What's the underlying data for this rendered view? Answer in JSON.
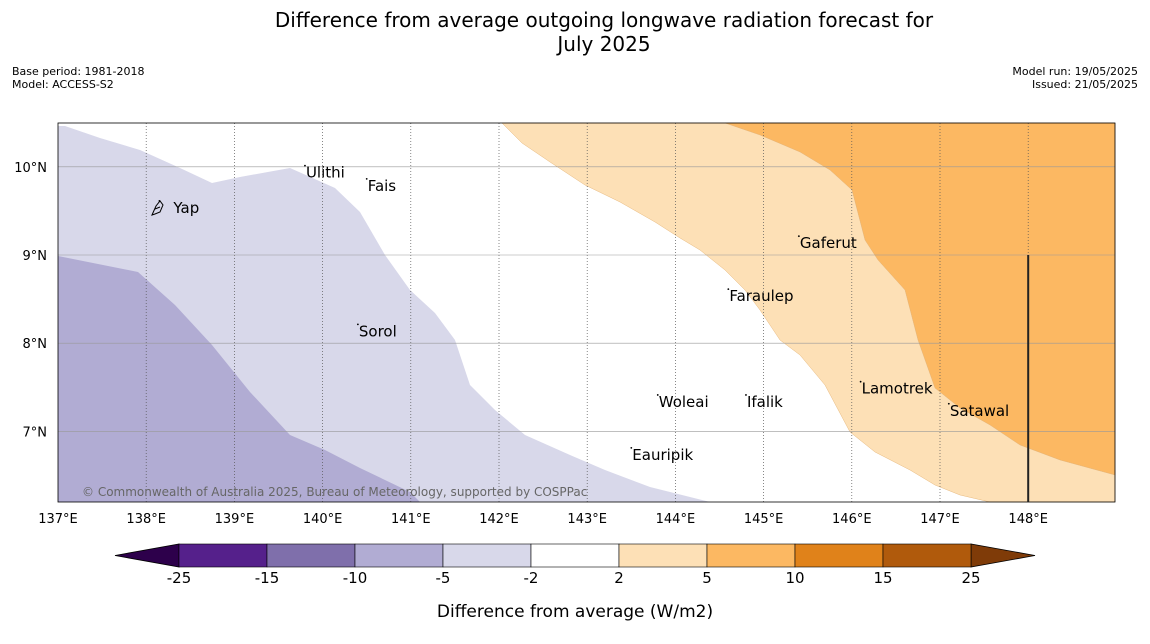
{
  "title": {
    "line1": "Difference from average outgoing longwave radiation forecast for",
    "line2": "July 2025"
  },
  "meta": {
    "base_period": "Base period: 1981-2018",
    "model": "Model: ACCESS-S2",
    "model_run": "Model run: 19/05/2025",
    "issued": "Issued: 21/05/2025"
  },
  "copyright": "© Commonwealth of Australia 2025, Bureau of Meteorology, supported by COSPPac",
  "map": {
    "lon_range": [
      137,
      149
    ],
    "lat_range": [
      6.2,
      10.5
    ],
    "lon_ticks": [
      {
        "value": 137,
        "label": "137°E"
      },
      {
        "value": 138,
        "label": "138°E"
      },
      {
        "value": 139,
        "label": "139°E"
      },
      {
        "value": 140,
        "label": "140°E"
      },
      {
        "value": 141,
        "label": "141°E"
      },
      {
        "value": 142,
        "label": "142°E"
      },
      {
        "value": 143,
        "label": "143°E"
      },
      {
        "value": 144,
        "label": "144°E"
      },
      {
        "value": 145,
        "label": "145°E"
      },
      {
        "value": 146,
        "label": "146°E"
      },
      {
        "value": 147,
        "label": "147°E"
      },
      {
        "value": 148,
        "label": "148°E"
      }
    ],
    "lat_ticks": [
      {
        "value": 10,
        "label": "10°N"
      },
      {
        "value": 9,
        "label": "9°N"
      },
      {
        "value": 8,
        "label": "8°N"
      },
      {
        "value": 7,
        "label": "7°N"
      }
    ],
    "islands": [
      {
        "name": "Ulithi",
        "lon": 139.8,
        "lat": 9.9
      },
      {
        "name": "Fais",
        "lon": 140.5,
        "lat": 9.75
      },
      {
        "name": "Yap",
        "lon": 138.15,
        "lat": 9.5
      },
      {
        "name": "Sorol",
        "lon": 140.4,
        "lat": 8.1
      },
      {
        "name": "Gaferut",
        "lon": 145.4,
        "lat": 9.1
      },
      {
        "name": "Faraulep",
        "lon": 144.6,
        "lat": 8.5
      },
      {
        "name": "Woleai",
        "lon": 143.8,
        "lat": 7.3
      },
      {
        "name": "Ifalik",
        "lon": 144.8,
        "lat": 7.3
      },
      {
        "name": "Lamotrek",
        "lon": 146.1,
        "lat": 7.45
      },
      {
        "name": "Satawal",
        "lon": 147.1,
        "lat": 7.2
      },
      {
        "name": "Eauripik",
        "lon": 143.5,
        "lat": 6.7
      }
    ],
    "contour_fills": [
      {
        "range": "-10 to -5",
        "color": "#b1acd3"
      },
      {
        "range": "-5 to -2",
        "color": "#d8d8ea"
      },
      {
        "range": "2 to 5",
        "color": "#fde0b6"
      },
      {
        "range": "5 to 10",
        "color": "#fcb862"
      }
    ]
  },
  "colorbar": {
    "label": "Difference from average (W/m2)",
    "ticks": [
      "-25",
      "-15",
      "-10",
      "-5",
      "-2",
      "2",
      "5",
      "10",
      "15",
      "25"
    ],
    "colors": [
      "#55208b",
      "#7f6fab",
      "#b1acd3",
      "#d8d8ea",
      "#ffffff",
      "#fde0b6",
      "#fcb862",
      "#e0821a",
      "#b05a0c"
    ],
    "under_color": "#2d004b",
    "over_color": "#7f3b08"
  }
}
